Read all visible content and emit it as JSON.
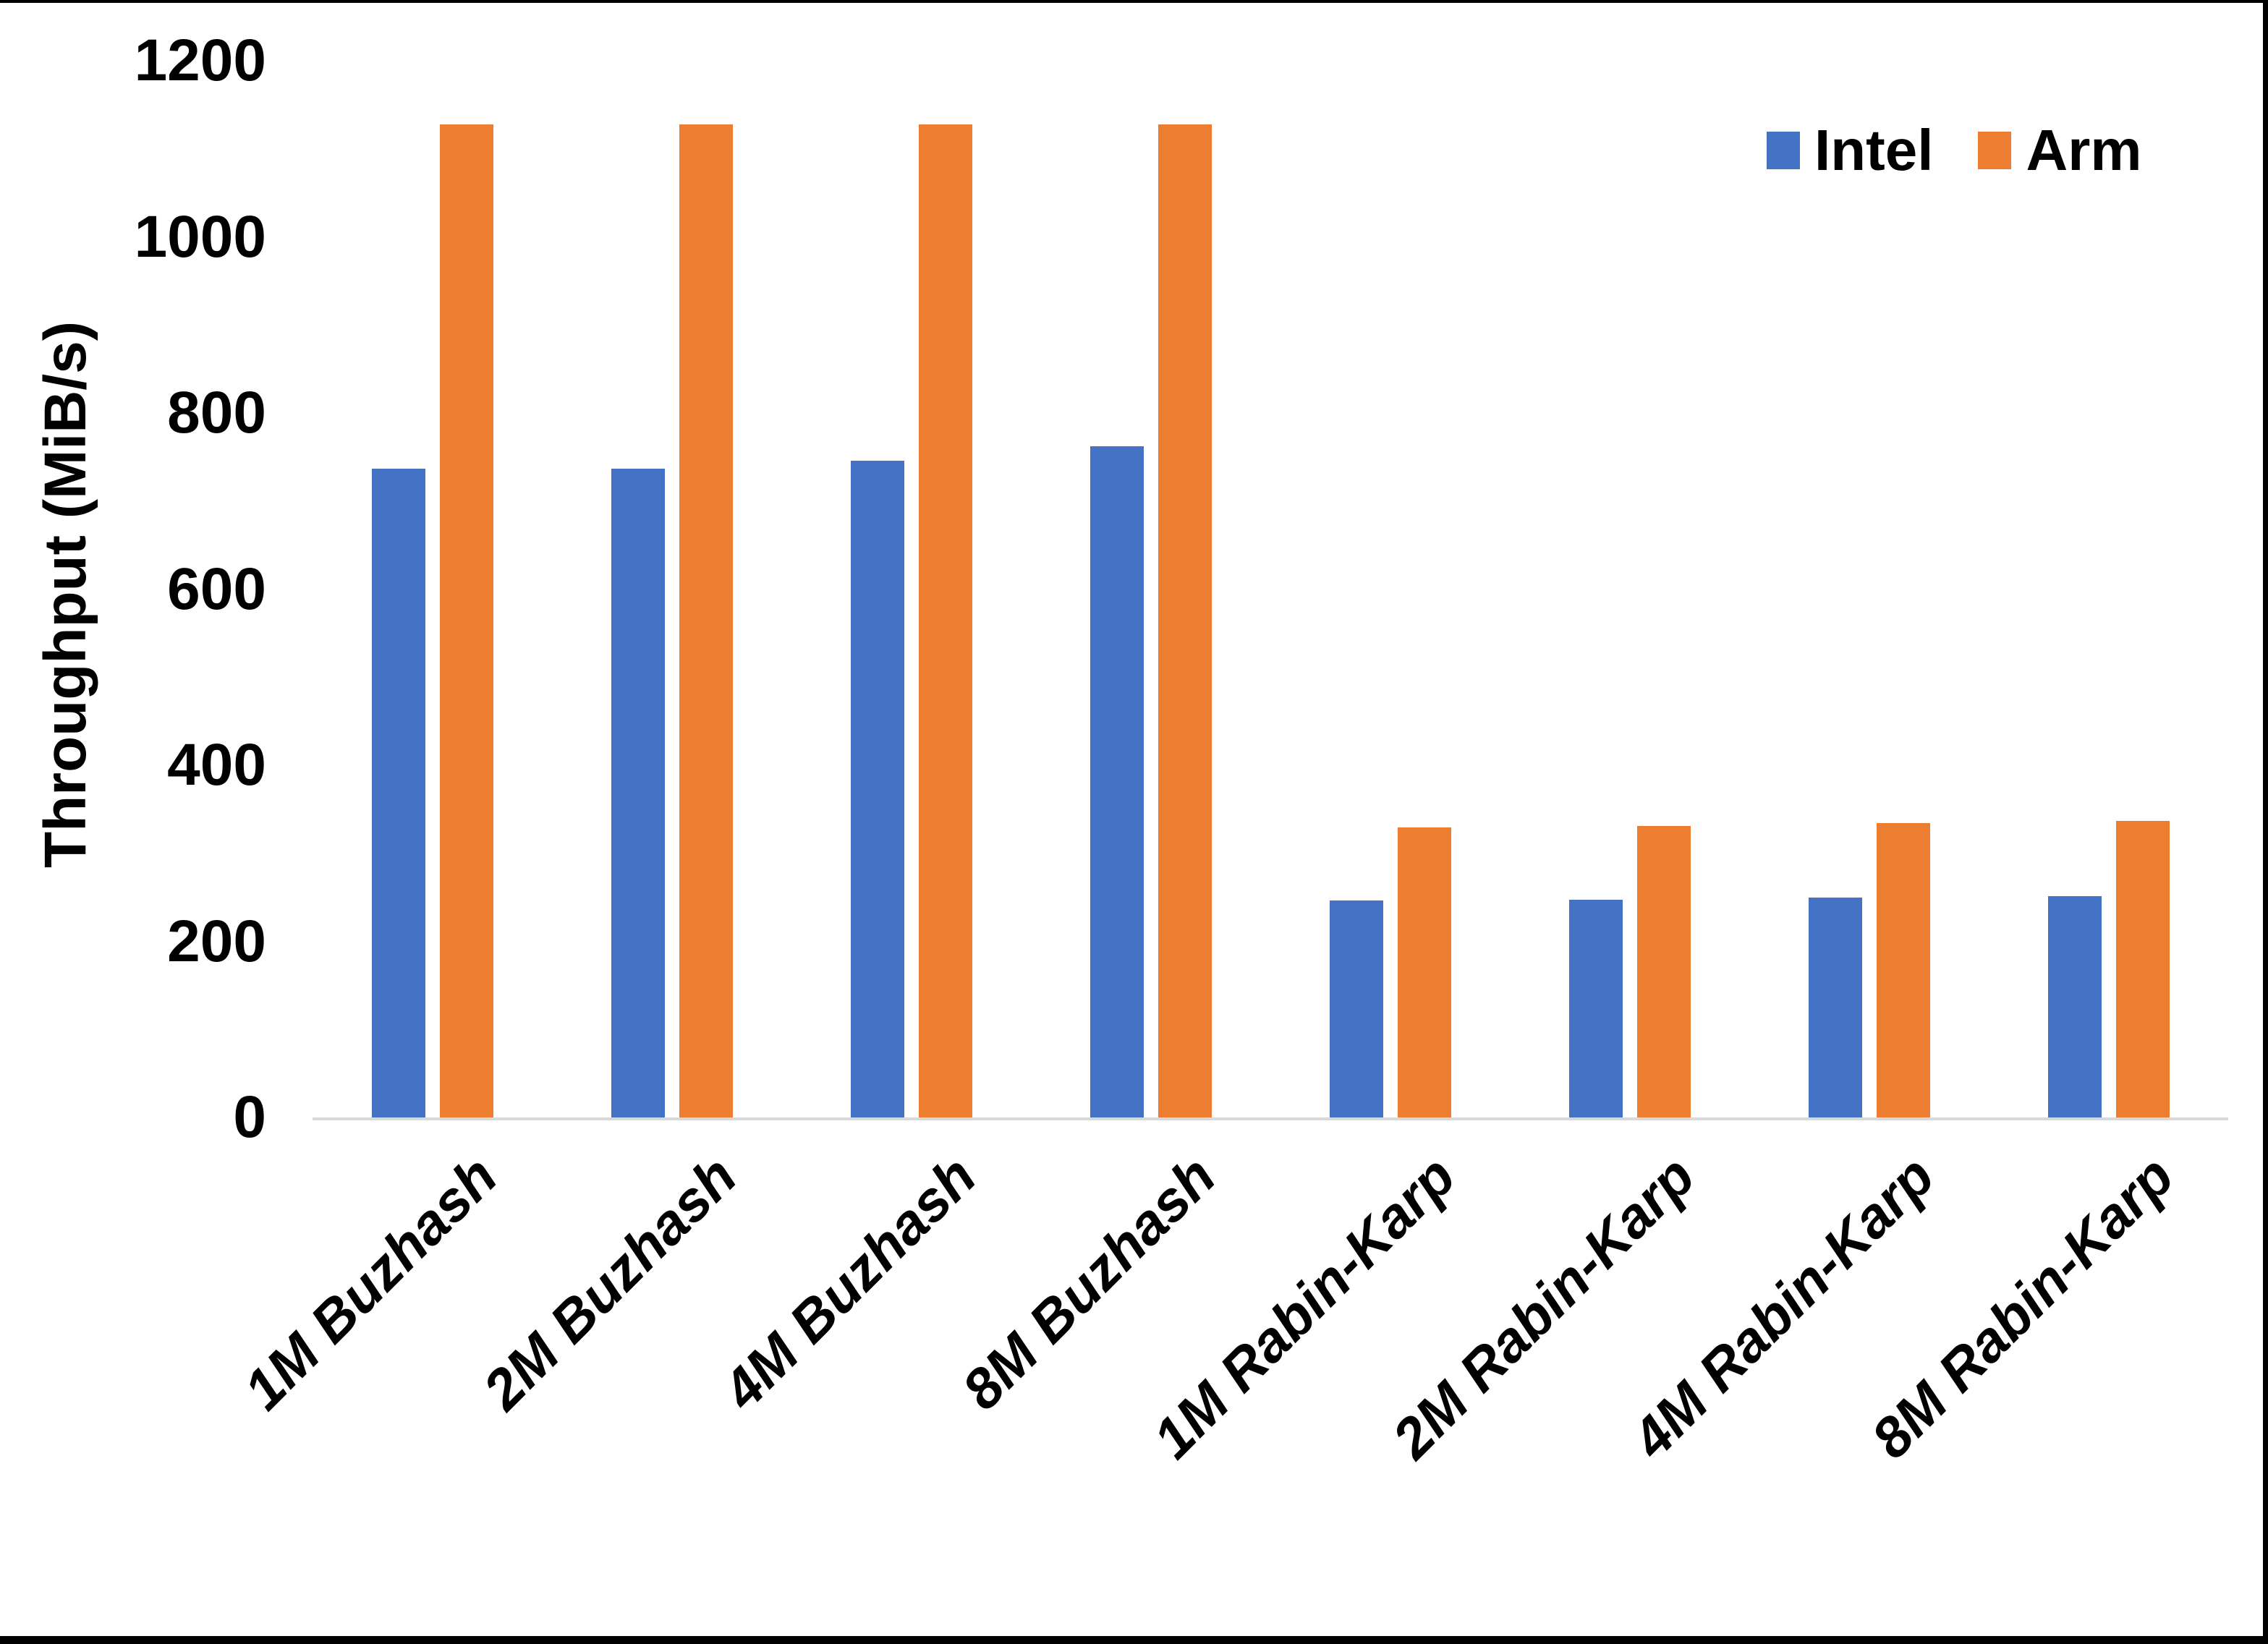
{
  "page": {
    "background": "#ffffff",
    "frame_color": "#000000"
  },
  "chart_data": {
    "type": "bar",
    "title": "",
    "ylabel": "Throughput (MiB/s)",
    "xlabel": "",
    "categories": [
      "1M Buzhash",
      "2M Buzhash",
      "4M Buzhash",
      "8M Buzhash",
      "1M Rabin-Karp",
      "2M Rabin-Karp",
      "4M Rabin-Karp",
      "8M Rabin-Karp"
    ],
    "series": [
      {
        "name": "Intel",
        "color": "#4472C4",
        "values": [
          737,
          737,
          746,
          762,
          246,
          247,
          250,
          251
        ]
      },
      {
        "name": "Arm",
        "color": "#ED7D31",
        "values": [
          1128,
          1128,
          1128,
          1128,
          329,
          331,
          334,
          337
        ]
      }
    ],
    "ylim": [
      0,
      1200
    ],
    "y_ticks": [
      0,
      200,
      400,
      600,
      800,
      1000,
      1200
    ],
    "grid": false,
    "legend_position": "top-right",
    "axis_line_color": "#D9D9D9",
    "text_color": "#000000"
  }
}
